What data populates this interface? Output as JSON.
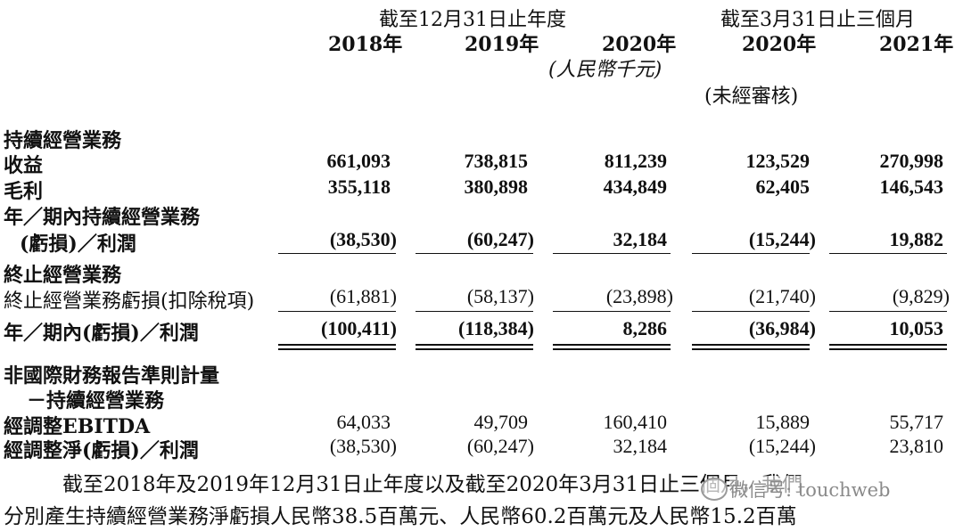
{
  "header": {
    "group1": "截至12月31日止年度",
    "group2": "截至3月31日止三個月",
    "years": [
      "2018年",
      "2019年",
      "2020年",
      "2020年",
      "2021年"
    ],
    "currency": "(人民幣千元)",
    "unaudited": "(未經審核)"
  },
  "rows": [
    {
      "label": "持續經營業務",
      "values": []
    },
    {
      "label": "收益",
      "values": [
        "661,093",
        "738,815",
        "811,239",
        "123,529",
        "270,998"
      ]
    },
    {
      "label": "毛利",
      "values": [
        "355,118",
        "380,898",
        "434,849",
        "62,405",
        "146,543"
      ]
    },
    {
      "label": "年／期內持續經營業務",
      "values": []
    },
    {
      "label": "(虧損)／利潤",
      "values": [
        "(38,530)",
        "(60,247)",
        "32,184",
        "(15,244)",
        "19,882"
      ]
    },
    {
      "label": "終止經營業務",
      "values": []
    },
    {
      "label": "終止經營業務虧損(扣除稅項)",
      "values": [
        "(61,881)",
        "(58,137)",
        "(23,898)",
        "(21,740)",
        "(9,829)"
      ]
    },
    {
      "label": "年／期內(虧損)／利潤",
      "values": [
        "(100,411)",
        "(118,384)",
        "8,286",
        "(36,984)",
        "10,053"
      ]
    },
    {
      "label": "非國際財務報告準則計量",
      "values": []
    },
    {
      "label": "－持續經營業務",
      "values": []
    },
    {
      "label": "經調整EBITDA",
      "values": [
        "64,033",
        "49,709",
        "160,410",
        "15,889",
        "55,717"
      ]
    },
    {
      "label": "經調整淨(虧損)／利潤",
      "values": [
        "(38,530)",
        "(60,247)",
        "32,184",
        "(15,244)",
        "23,810"
      ]
    }
  ],
  "paragraph": {
    "line1": "截至2018年及2019年12月31日止年度以及截至2020年3月31日止三個月，我們",
    "line2": "分別產生持續經營業務淨虧損人民幣38.5百萬元、人民幣60.2百萬元及人民幣15.2百萬"
  },
  "watermark": "微信号: touchweb"
}
